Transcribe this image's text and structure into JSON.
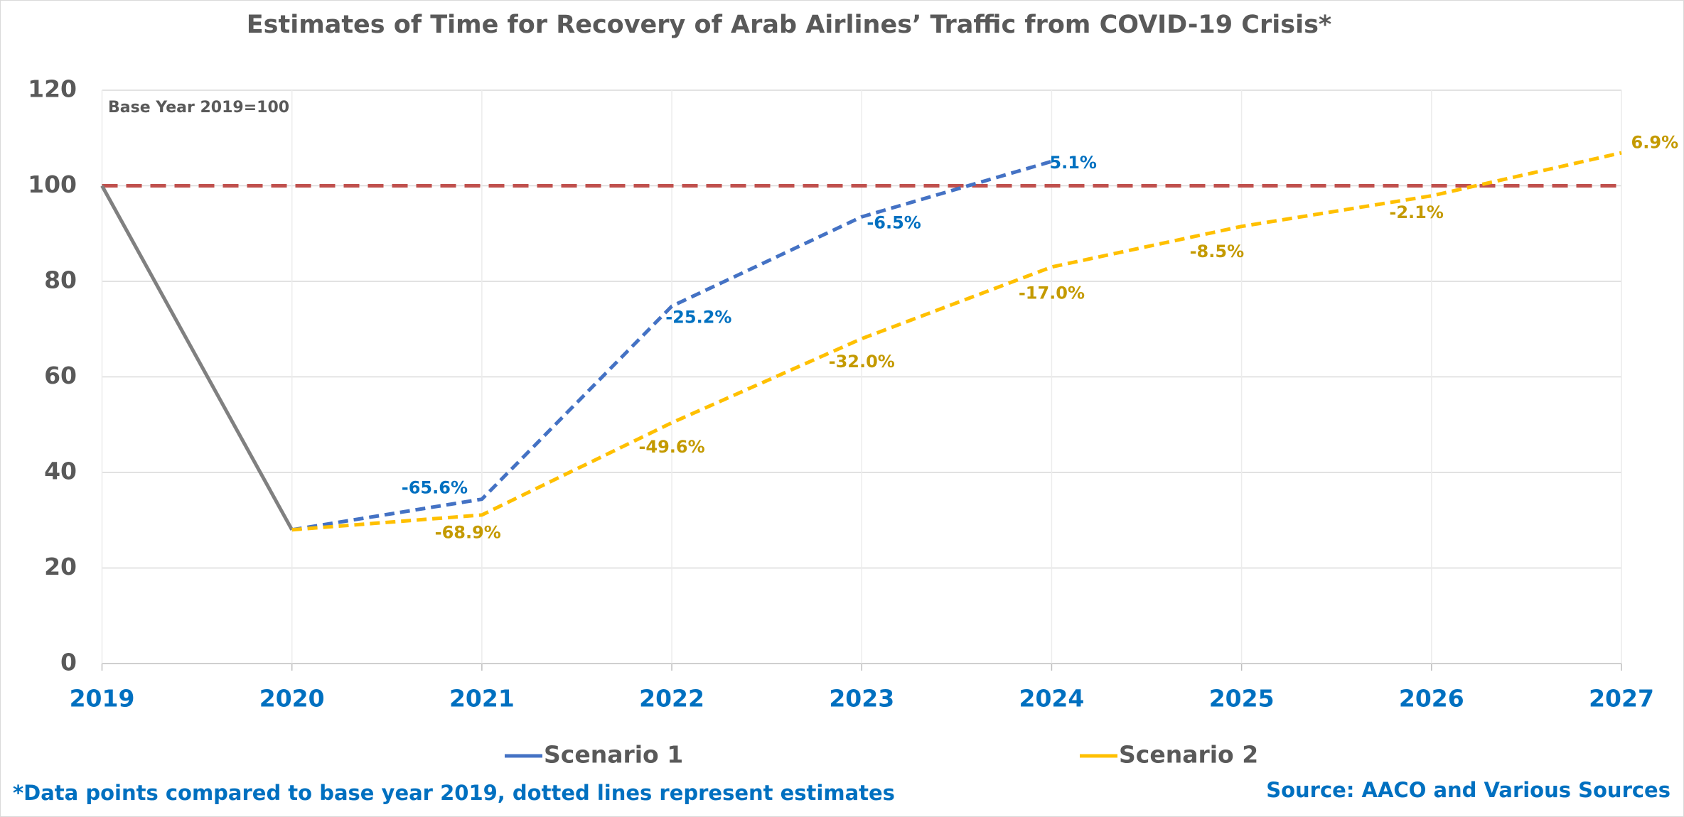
{
  "chart_data": {
    "type": "line",
    "title": "Estimates of Time for Recovery of Arab Airlines’ Traffic from COVID-19 Crisis*",
    "annotation": "Base Year 2019=100",
    "footnote": "*Data points compared to base year 2019, dotted lines represent estimates",
    "source": "Source: AACO and Various Sources",
    "xlim": [
      2019,
      2027
    ],
    "xticks": [
      2019,
      2020,
      2021,
      2022,
      2023,
      2024,
      2025,
      2026,
      2027
    ],
    "ylim": [
      0,
      120
    ],
    "yticks": [
      0,
      20,
      40,
      60,
      80,
      100,
      120
    ],
    "grid": true,
    "reference_line": {
      "value": 100,
      "color": "#c0504d"
    },
    "series": [
      {
        "color": "#808080",
        "dashed": false,
        "x": [
          2019,
          2020
        ],
        "values": [
          100,
          28
        ]
      },
      {
        "name": "Scenario 1",
        "color": "#4472c4",
        "label_color": "#0070c0",
        "dashed": true,
        "x": [
          2020,
          2021,
          2022,
          2023,
          2024
        ],
        "values": [
          28,
          34.4,
          74.8,
          93.5,
          105.1
        ],
        "value_labels": [
          null,
          "-65.6%",
          "-25.2%",
          "-6.5%",
          "5.1%"
        ]
      },
      {
        "name": "Scenario 2",
        "color": "#ffc000",
        "label_color": "#c49a00",
        "dashed": true,
        "x": [
          2020,
          2021,
          2022,
          2023,
          2024,
          2025,
          2026,
          2027
        ],
        "values": [
          28,
          31.1,
          50.4,
          68.0,
          83.0,
          91.5,
          97.9,
          106.9
        ],
        "value_labels": [
          null,
          "-68.9%",
          "-49.6%",
          "-32.0%",
          "-17.0%",
          "-8.5%",
          "-2.1%",
          "6.9%"
        ]
      }
    ]
  }
}
